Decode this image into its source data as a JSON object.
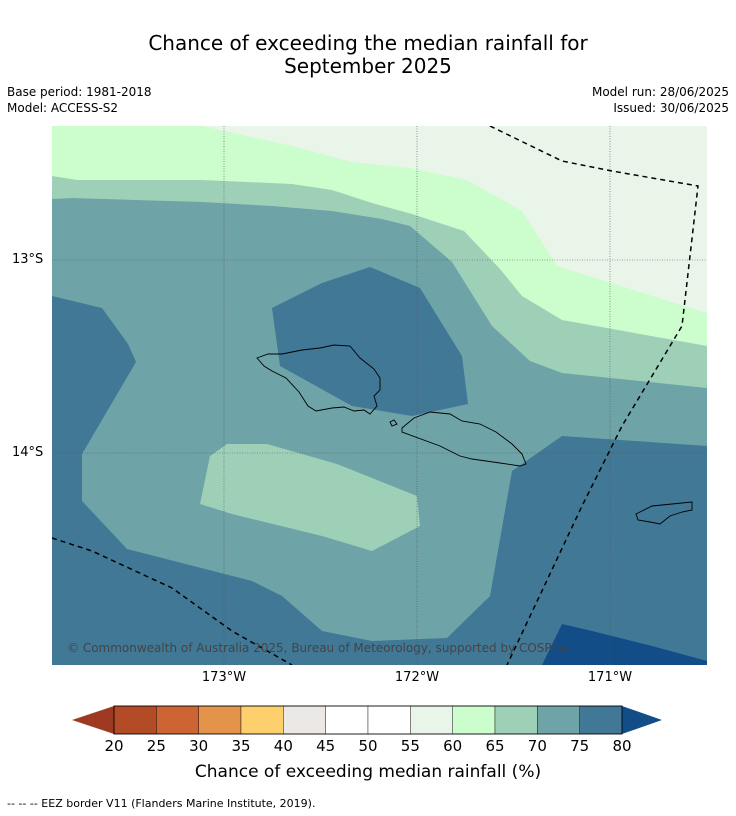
{
  "title": {
    "line1": "Chance of exceeding the median rainfall for",
    "line2": "September 2025"
  },
  "meta": {
    "base_period": "Base period: 1981-2018",
    "model": "Model: ACCESS-S2",
    "model_run": "Model run: 28/06/2025",
    "issued": "Issued: 30/06/2025"
  },
  "map": {
    "copyright": "© Commonwealth of Australia 2025, Bureau of Meteorology, supported by COSPPac",
    "lat_labels": [
      "13°S",
      "14°S"
    ],
    "lon_labels": [
      "173°W",
      "172°W",
      "171°W"
    ],
    "colors": {
      "c40_45": "#ebe8e5",
      "c55_60": "#eaf5ea",
      "c60_65": "#ccfdcc",
      "c65_70": "#9ed0b8",
      "c70_75": "#6ea3a7",
      "c75_80": "#417896",
      "c80_plus": "#134d87"
    }
  },
  "colorbar": {
    "label": "Chance of exceeding median rainfall (%)",
    "ticks": [
      "20",
      "25",
      "30",
      "35",
      "40",
      "45",
      "50",
      "55",
      "60",
      "65",
      "70",
      "75",
      "80"
    ],
    "under_color": "#9e3a22",
    "over_color": "#134d87",
    "bin_colors": [
      "#b34b27",
      "#cd6433",
      "#e3944a",
      "#fdd06d",
      "#ebe8e5",
      "#ffffff",
      "#ffffff",
      "#eaf5ea",
      "#ccfdcc",
      "#9ed0b8",
      "#6ea3a7",
      "#417896"
    ]
  },
  "footnote": "-- -- -- EEZ border V11 (Flanders Marine Institute, 2019)."
}
